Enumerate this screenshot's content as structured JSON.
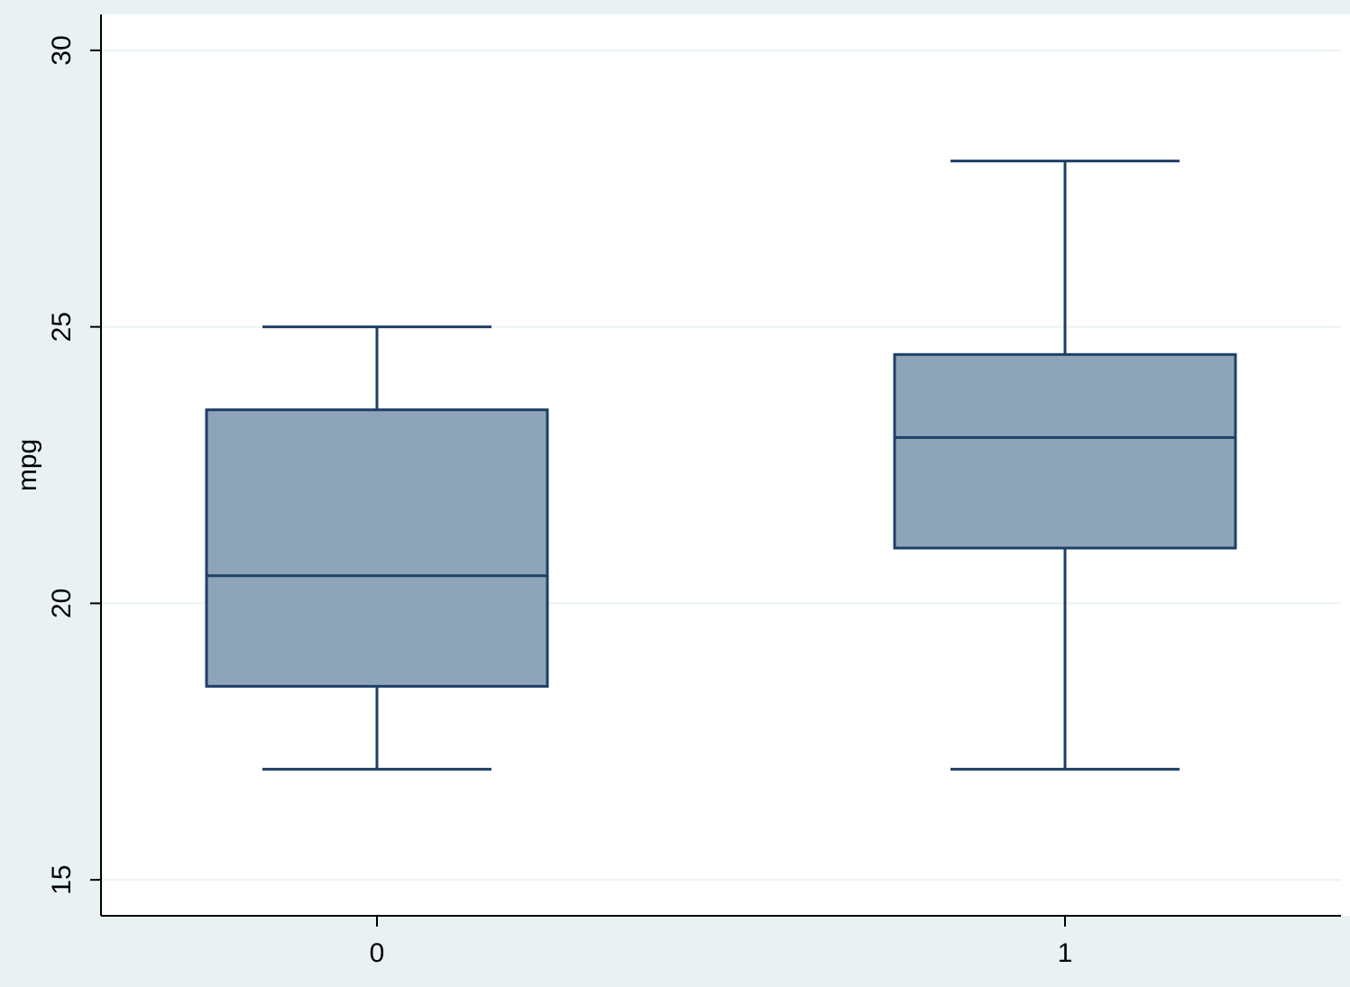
{
  "chart_data": {
    "type": "box",
    "title": "",
    "xlabel": "",
    "ylabel": "mpg",
    "ylim": [
      14.35,
      30.65
    ],
    "yticks": [
      15,
      20,
      25,
      30
    ],
    "ytick_labels": [
      "15",
      "20",
      "25",
      "30"
    ],
    "grid": true,
    "categories": [
      "0",
      "1"
    ],
    "boxes": [
      {
        "category": "0",
        "whisker_low": 17,
        "q1": 18.5,
        "median": 20.5,
        "q3": 23.5,
        "whisker_high": 25
      },
      {
        "category": "1",
        "whisker_low": 17,
        "q1": 21,
        "median": 23,
        "q3": 24.5,
        "whisker_high": 28
      }
    ],
    "colors": {
      "background": "#eaf1f3",
      "plot_background": "#ffffff",
      "gridline": "#eaf1f3",
      "box_fill": "#8ea4b9",
      "box_stroke": "#1e3f66",
      "axis": "#000000"
    }
  }
}
